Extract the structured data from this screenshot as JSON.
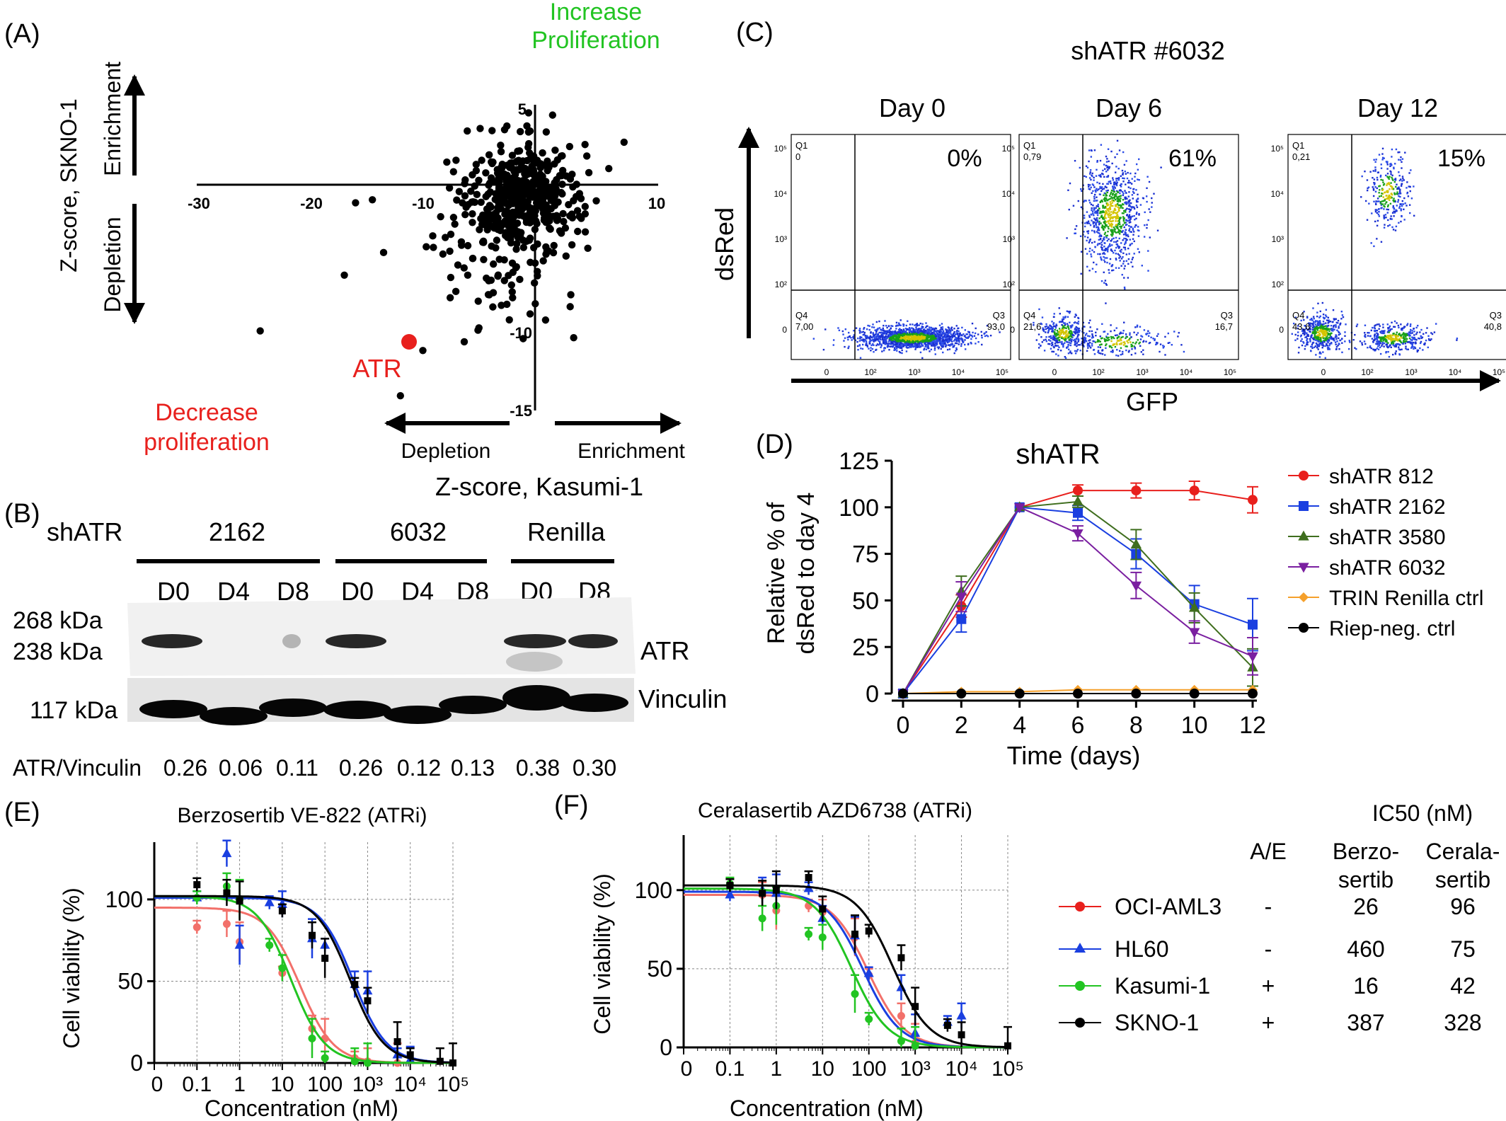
{
  "panel_labels": {
    "A": "(A)",
    "B": "(B)",
    "C": "(C)",
    "D": "(D)",
    "E": "(E)",
    "F": "(F)"
  },
  "colors": {
    "red": "#e8201d",
    "green": "#22c422",
    "blue": "#1a3fe0",
    "black": "#000000",
    "purple": "#7a1fa0",
    "olive": "#3f6e1e",
    "orange": "#f5a02b",
    "salmon": "#f2706a",
    "lime": "#1ccc1c"
  },
  "panelA": {
    "increase_label": "Increase\nProliferation",
    "decrease_label": "Decrease\nproliferation",
    "y_title": "Z-score, SKNO-1",
    "y_enrichment": "Enrichment",
    "y_depletion": "Depletion",
    "x_title": "Z-score, Kasumi-1",
    "x_depletion": "Depletion",
    "x_enrichment": "Enrichment",
    "atr_label": "ATR",
    "x_ticks": [
      "-30",
      "-20",
      "-10",
      "10"
    ],
    "y_ticks": [
      "5",
      "-10",
      "-15"
    ]
  },
  "panelB": {
    "shATR": "shATR",
    "groups": [
      "2162",
      "6032",
      "Renilla"
    ],
    "lanes": [
      "D0",
      "D4",
      "D8",
      "D0",
      "D4",
      "D8",
      "D0",
      "D8"
    ],
    "kda": [
      "268 kDa",
      "238 kDa",
      "117 kDa"
    ],
    "atr": "ATR",
    "vinculin": "Vinculin",
    "ratio_label": "ATR/Vinculin",
    "ratios": [
      "0.26",
      "0.06",
      "0.11",
      "0.26",
      "0.12",
      "0.13",
      "0.38",
      "0.30"
    ]
  },
  "panelC": {
    "title": "shATR #6032",
    "days": [
      "Day 0",
      "Day 6",
      "Day 12"
    ],
    "percent": [
      "0%",
      "61%",
      "15%"
    ],
    "y_title": "dsRed",
    "x_title": "GFP",
    "q1": [
      "Q1\n0",
      "Q1\n0,79",
      "Q1\n0,21"
    ],
    "q4": [
      "Q4\n7,00",
      "Q4\n21,6",
      "Q4\n43,6"
    ],
    "q3": [
      "Q3\n93,0",
      "Q3\n16,7",
      "Q3\n40,8"
    ]
  },
  "chart_data": [
    {
      "type": "line",
      "title": "shATR",
      "xlabel": "Time (days)",
      "ylabel": "Relative % of\ndsRed to day 4",
      "x": [
        0,
        2,
        4,
        6,
        8,
        10,
        12
      ],
      "xlim": [
        0,
        12
      ],
      "ylim": [
        0,
        125
      ],
      "yticks": [
        0,
        25,
        50,
        75,
        100,
        125
      ],
      "series": [
        {
          "name": "shATR 812",
          "color": "#e8201d",
          "marker": "circle",
          "values": [
            0,
            47,
            100,
            109,
            109,
            109,
            104
          ],
          "err": [
            0,
            6,
            0,
            3,
            4,
            5,
            7
          ]
        },
        {
          "name": "shATR 2162",
          "color": "#1a3fe0",
          "marker": "square",
          "values": [
            0,
            40,
            100,
            97,
            75,
            48,
            37
          ],
          "err": [
            0,
            7,
            0,
            4,
            8,
            10,
            14
          ]
        },
        {
          "name": "shATR 3580",
          "color": "#3f6e1e",
          "marker": "triangle",
          "values": [
            0,
            55,
            100,
            103,
            80,
            46,
            14
          ],
          "err": [
            0,
            8,
            0,
            3,
            8,
            8,
            10
          ]
        },
        {
          "name": "shATR 6032",
          "color": "#7a1fa0",
          "marker": "tri-down",
          "values": [
            0,
            52,
            100,
            86,
            58,
            33,
            20
          ],
          "err": [
            0,
            8,
            0,
            4,
            7,
            6,
            10
          ]
        },
        {
          "name": "TRIN Renilla ctrl",
          "color": "#f5a02b",
          "marker": "diamond",
          "values": [
            0,
            1,
            1,
            2,
            2,
            2,
            2
          ],
          "err": [
            0,
            0,
            0,
            0,
            0,
            0,
            0
          ]
        },
        {
          "name": "Riep-neg. ctrl",
          "color": "#000000",
          "marker": "circle",
          "values": [
            0,
            0,
            0,
            0,
            0,
            0,
            0
          ],
          "err": [
            0,
            0,
            0,
            0,
            0,
            0,
            0
          ]
        }
      ]
    },
    {
      "type": "scatter",
      "title": "Berzosertib VE-822 (ATRi)",
      "xlabel": "Concentration (nM)",
      "ylabel": "Cell viability (%)",
      "xtick_labels": [
        "0",
        "0.1",
        "1",
        "10",
        "100",
        "10³",
        "10⁴",
        "10⁵"
      ],
      "yticks": [
        0,
        50,
        100
      ],
      "ylim": [
        0,
        135
      ],
      "series": [
        {
          "name": "OCI-AML3",
          "color": "#f2706a",
          "ic50": 26,
          "top": 95,
          "points": [
            [
              0.1,
              83
            ],
            [
              0.5,
              85
            ],
            [
              1,
              74
            ],
            [
              10,
              55
            ],
            [
              50,
              21
            ],
            [
              100,
              15
            ],
            [
              500,
              3
            ],
            [
              1000,
              1
            ],
            [
              5000,
              0
            ]
          ]
        },
        {
          "name": "HL60",
          "color": "#1a3fe0",
          "ic50": 460,
          "top": 101,
          "points": [
            [
              0.1,
              101
            ],
            [
              0.5,
              128
            ],
            [
              1,
              72
            ],
            [
              5,
              98
            ],
            [
              10,
              97
            ],
            [
              50,
              76
            ],
            [
              100,
              72
            ],
            [
              500,
              48
            ],
            [
              1000,
              44
            ],
            [
              5000,
              5
            ],
            [
              10000,
              2
            ]
          ]
        },
        {
          "name": "Kasumi-1",
          "color": "#22c422",
          "ic50": 16,
          "top": 102,
          "points": [
            [
              0.1,
              101
            ],
            [
              0.5,
              108
            ],
            [
              1,
              100
            ],
            [
              5,
              72
            ],
            [
              10,
              58
            ],
            [
              50,
              15
            ],
            [
              100,
              3
            ],
            [
              500,
              1
            ],
            [
              1000,
              0
            ]
          ]
        },
        {
          "name": "SKNO-1",
          "color": "#000000",
          "ic50": 387,
          "top": 102,
          "points": [
            [
              0.1,
              109
            ],
            [
              0.5,
              104
            ],
            [
              1,
              99
            ],
            [
              10,
              93
            ],
            [
              50,
              78
            ],
            [
              100,
              64
            ],
            [
              500,
              48
            ],
            [
              1000,
              38
            ],
            [
              5000,
              13
            ],
            [
              10000,
              5
            ],
            [
              50000,
              1
            ],
            [
              100000,
              0
            ]
          ]
        }
      ]
    },
    {
      "type": "scatter",
      "title": "Ceralasertib AZD6738 (ATRi)",
      "xlabel": "Concentration (nM)",
      "ylabel": "Cell viability (%)",
      "xtick_labels": [
        "0",
        "0.1",
        "1",
        "10",
        "100",
        "10³",
        "10⁴",
        "10⁵"
      ],
      "yticks": [
        0,
        50,
        100
      ],
      "ylim": [
        0,
        135
      ],
      "series": [
        {
          "name": "OCI-AML3",
          "color": "#f2706a",
          "ic50": 96,
          "top": 97,
          "points": [
            [
              0.1,
              103
            ],
            [
              0.5,
              97
            ],
            [
              1,
              87
            ],
            [
              5,
              90
            ],
            [
              10,
              86
            ],
            [
              50,
              70
            ],
            [
              100,
              46
            ],
            [
              500,
              20
            ],
            [
              1000,
              3
            ]
          ]
        },
        {
          "name": "HL60",
          "color": "#1a3fe0",
          "ic50": 75,
          "top": 99,
          "points": [
            [
              0.1,
              97
            ],
            [
              0.5,
              100
            ],
            [
              1,
              98
            ],
            [
              5,
              101
            ],
            [
              10,
              82
            ],
            [
              50,
              71
            ],
            [
              100,
              47
            ],
            [
              500,
              38
            ],
            [
              1000,
              9
            ],
            [
              5000,
              16
            ],
            [
              10000,
              20
            ]
          ]
        },
        {
          "name": "Kasumi-1",
          "color": "#22c422",
          "ic50": 42,
          "top": 101,
          "points": [
            [
              0.1,
              104
            ],
            [
              0.5,
              82
            ],
            [
              1,
              90
            ],
            [
              5,
              72
            ],
            [
              10,
              70
            ],
            [
              50,
              34
            ],
            [
              100,
              18
            ],
            [
              500,
              4
            ],
            [
              1000,
              1
            ]
          ]
        },
        {
          "name": "SKNO-1",
          "color": "#000000",
          "ic50": 328,
          "top": 103,
          "points": [
            [
              0.1,
              103
            ],
            [
              0.5,
              98
            ],
            [
              1,
              100
            ],
            [
              5,
              108
            ],
            [
              10,
              88
            ],
            [
              50,
              72
            ],
            [
              100,
              74
            ],
            [
              500,
              57
            ],
            [
              1000,
              26
            ],
            [
              5000,
              14
            ],
            [
              10000,
              8
            ],
            [
              100000,
              1
            ]
          ]
        }
      ]
    }
  ],
  "ic50_table": {
    "header": "IC50 (nM)",
    "col_ae": "A/E",
    "col_berzo": "Berzo-\nsertib",
    "col_cerala": "Cerala-\nsertib",
    "rows": [
      {
        "name": "OCI-AML3",
        "ae": "-",
        "berzo": "26",
        "cerala": "96",
        "color": "#e8201d",
        "marker": "circle"
      },
      {
        "name": "HL60",
        "ae": "-",
        "berzo": "460",
        "cerala": "75",
        "color": "#1a3fe0",
        "marker": "triangle"
      },
      {
        "name": "Kasumi-1",
        "ae": "+",
        "berzo": "16",
        "cerala": "42",
        "color": "#22c422",
        "marker": "circle"
      },
      {
        "name": "SKNO-1",
        "ae": "+",
        "berzo": "387",
        "cerala": "328",
        "color": "#000000",
        "marker": "circle"
      }
    ]
  }
}
